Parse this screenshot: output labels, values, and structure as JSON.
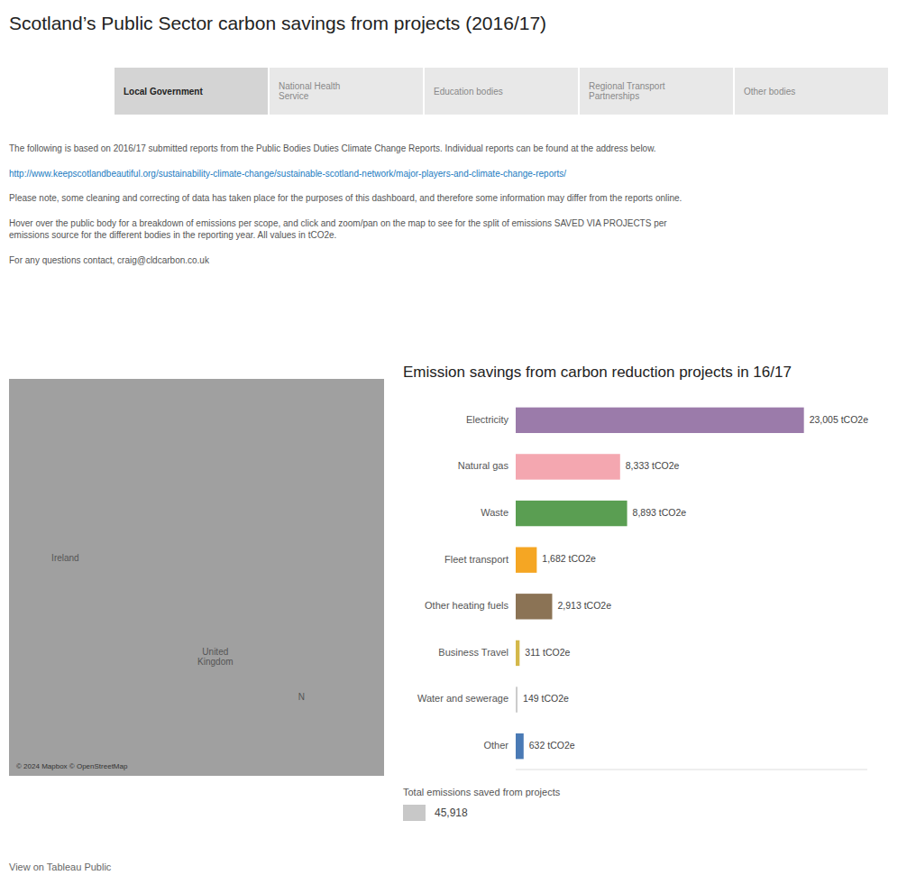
{
  "chart_data": {
    "type": "bar",
    "orientation": "horizontal",
    "title": "Emission savings from carbon reduction projects in 16/17",
    "categories": [
      "Electricity",
      "Natural gas",
      "Waste",
      "Fleet transport",
      "Other heating fuels",
      "Business Travel",
      "Water and sewerage",
      "Other"
    ],
    "values": [
      23005,
      8333,
      8893,
      1682,
      2913,
      311,
      149,
      632
    ],
    "value_labels": [
      "23,005 tCO2e",
      "8,333 tCO2e",
      "8,893 tCO2e",
      "1,682 tCO2e",
      "2,913 tCO2e",
      "311 tCO2e",
      "149 tCO2e",
      "632 tCO2e"
    ],
    "colors": [
      "#9b7baa",
      "#f4a7b0",
      "#5a9e52",
      "#f5a623",
      "#8b7355",
      "#d4b84a",
      "#cccccc",
      "#4a7ab5"
    ],
    "xlim": [
      0,
      28066.1
    ],
    "data_labels": true,
    "tick_labels": "y",
    "grid": false,
    "annotations": [
      "Scotland’s Public Sector carbon savings from projects (2016/17)",
      "Local Government",
      "National Health\nService",
      "Education bodies",
      "Regional Transport\nPartnerships",
      "Other bodies",
      "The following is based on 2016/17 submitted reports from the Public Bodies Duties Climate Change Reports. Individual reports can be found at the address below.",
      "http://www.keepscotlandbeautiful.org/sustainability-climate-change/sustainable-scotland-network/major-players-and-climate-change-reports/",
      "Please note, some cleaning and correcting of data has taken place for the purposes of this dashboard, and therefore some information may differ from the reports online.",
      "Hover over the public body for a breakdown of emissions per scope, and click and zoom/pan on the map to see for the split of emissions SAVED VIA PROJECTS per\nemissions source for the different bodies in the reporting year. All values in tCO2e.",
      "For any questions contact, craig@cldcarbon.co.uk",
      "United\nKingdom",
      "Ireland",
      "N",
      "© 2024 Mapbox  © OpenStreetMap",
      "Total emissions saved from projects",
      "45,918",
      "View on Tableau Public"
    ]
  }
}
